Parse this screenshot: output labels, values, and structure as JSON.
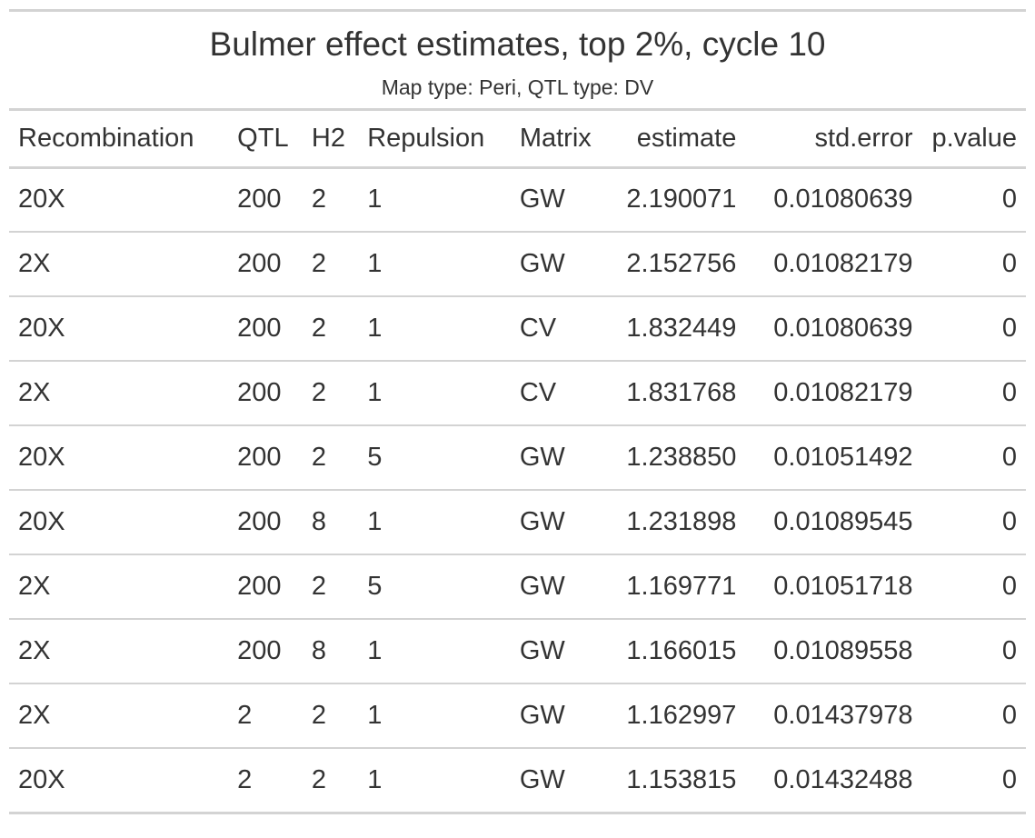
{
  "chart_data": {
    "type": "table",
    "title": "Bulmer effect estimates, top 2%, cycle 10",
    "subtitle": "Map type: Peri, QTL type: DV",
    "columns": [
      "Recombination",
      "QTL",
      "H2",
      "Repulsion",
      "Matrix",
      "estimate",
      "std.error",
      "p.value"
    ],
    "rows": [
      [
        "20X",
        "200",
        "2",
        "1",
        "GW",
        "2.190071",
        "0.01080639",
        "0"
      ],
      [
        "2X",
        "200",
        "2",
        "1",
        "GW",
        "2.152756",
        "0.01082179",
        "0"
      ],
      [
        "20X",
        "200",
        "2",
        "1",
        "CV",
        "1.832449",
        "0.01080639",
        "0"
      ],
      [
        "2X",
        "200",
        "2",
        "1",
        "CV",
        "1.831768",
        "0.01082179",
        "0"
      ],
      [
        "20X",
        "200",
        "2",
        "5",
        "GW",
        "1.238850",
        "0.01051492",
        "0"
      ],
      [
        "20X",
        "200",
        "8",
        "1",
        "GW",
        "1.231898",
        "0.01089545",
        "0"
      ],
      [
        "2X",
        "200",
        "2",
        "5",
        "GW",
        "1.169771",
        "0.01051718",
        "0"
      ],
      [
        "2X",
        "200",
        "8",
        "1",
        "GW",
        "1.166015",
        "0.01089558",
        "0"
      ],
      [
        "2X",
        "2",
        "2",
        "1",
        "GW",
        "1.162997",
        "0.01437978",
        "0"
      ],
      [
        "20X",
        "2",
        "2",
        "1",
        "GW",
        "1.153815",
        "0.01432488",
        "0"
      ]
    ]
  },
  "colors": {
    "text": "#333333",
    "rule": "#d3d3d3",
    "background": "#ffffff"
  }
}
